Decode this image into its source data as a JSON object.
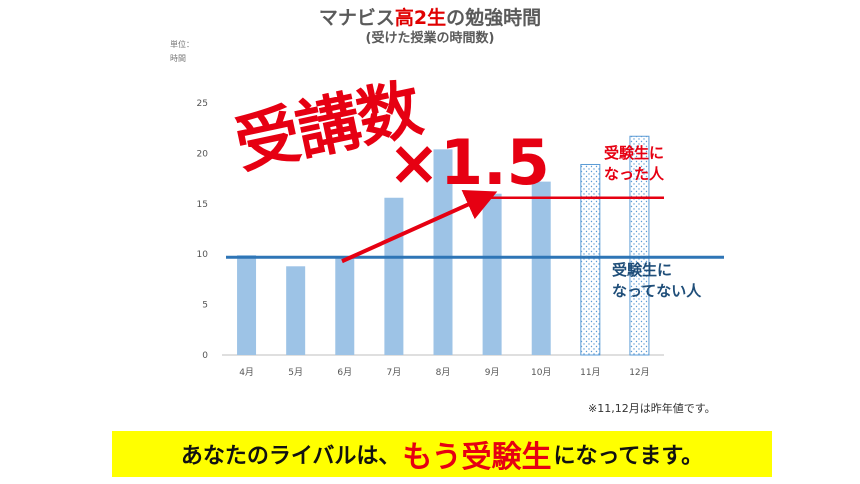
{
  "title_pre": "マナビス",
  "title_hl": "高2生",
  "title_post": "の勉強時間",
  "subtitle": "(受けた授業の時間数)",
  "unit_line1": "単位：",
  "unit_line2": "時間",
  "stamp_text": "受講数",
  "multiplier_text": "×1.5",
  "annotation_red_line1": "受験生に",
  "annotation_red_line2": "なった人",
  "annotation_blue_line1": "受験生に",
  "annotation_blue_line2": "なってない人",
  "note": "※11,12月は昨年値です。",
  "banner_pre": "あなたのライバルは、",
  "banner_big": "もう受験生",
  "banner_post": "になってます。",
  "colors": {
    "bar": "#9dc3e6",
    "bar_dotted_border": "#5b9bd5",
    "red": "#e60012",
    "blue_line": "#2e75b6",
    "banner_bg": "#ffff00"
  },
  "chart_data": {
    "type": "bar",
    "categories": [
      "4月",
      "5月",
      "6月",
      "7月",
      "8月",
      "9月",
      "10月",
      "11月",
      "12月"
    ],
    "values": [
      9.9,
      8.8,
      9.8,
      15.6,
      20.4,
      16.0,
      17.2,
      18.9,
      21.7
    ],
    "previous_year_categories": [
      "11月",
      "12月"
    ],
    "ylim": [
      0,
      25
    ],
    "yticks": [
      0,
      5,
      10,
      15,
      20,
      25
    ],
    "reference_lines": [
      {
        "value": 9.7,
        "color": "#2e75b6"
      },
      {
        "value": 15.6,
        "color": "#e60012"
      }
    ],
    "arrow": {
      "from_value": 9.3,
      "to_value": 15.9,
      "color": "#e60012"
    },
    "grid": false
  }
}
